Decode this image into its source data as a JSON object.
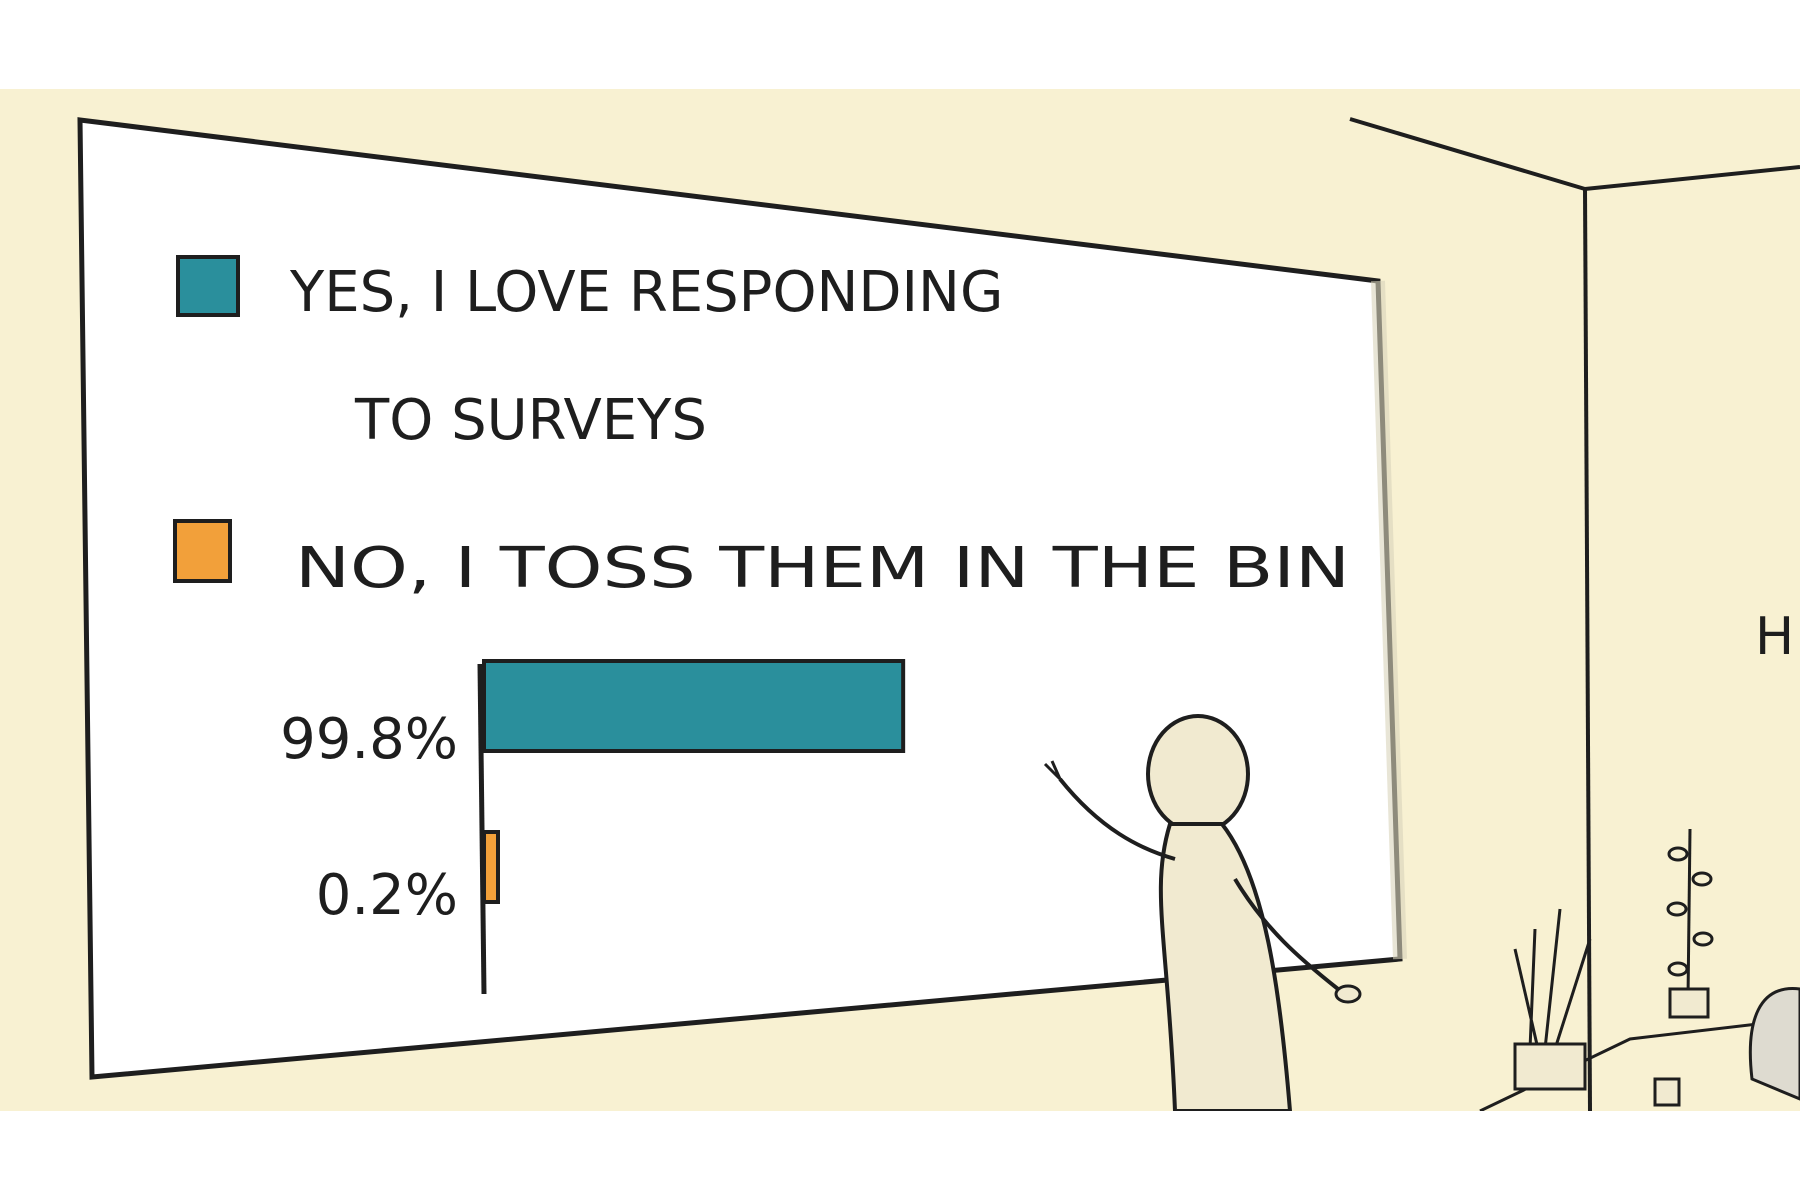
{
  "chart_data": {
    "type": "bar",
    "orientation": "horizontal",
    "categories": [
      "YES, I LOVE RESPONDING TO SURVEYS",
      "NO, I TOSS THEM IN THE BIN"
    ],
    "values": [
      99.8,
      0.2
    ],
    "value_labels": [
      "99.8%",
      "0.2%"
    ],
    "unit": "%",
    "xlim": [
      0,
      100
    ],
    "colors": [
      "#2a8f9c",
      "#f2a03a"
    ],
    "legend": {
      "placement": "top",
      "entries": [
        {
          "lines": [
            "YES, I LOVE RESPONDING",
            "TO SURVEYS"
          ],
          "color": "#2a8f9c"
        },
        {
          "lines": [
            "NO, I TOSS THEM IN THE BIN"
          ],
          "color": "#f2a03a"
        }
      ]
    },
    "grid": false,
    "title": "",
    "xlabel": "",
    "ylabel": ""
  },
  "side_wall": {
    "text": "H"
  },
  "colors": {
    "wall": "#f8f1d2",
    "board": "#ffffff",
    "ink": "#1e1e1e",
    "figure": "#f1ead0"
  }
}
